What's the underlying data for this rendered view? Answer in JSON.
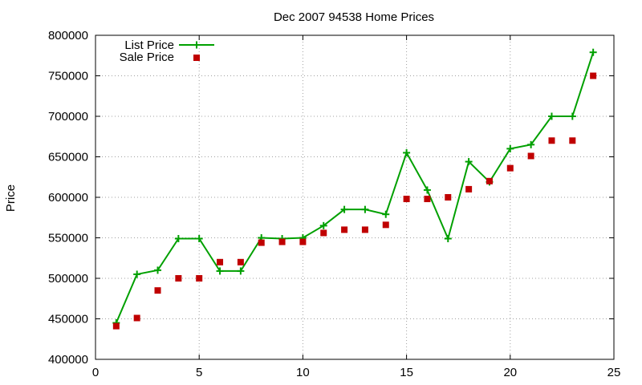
{
  "chart_data": {
    "type": "line",
    "title": "Dec 2007 94538 Home Prices",
    "xlabel": "",
    "ylabel": "Price",
    "xlim": [
      0,
      25
    ],
    "ylim": [
      400000,
      800000
    ],
    "xticks": [
      "0",
      "5",
      "10",
      "15",
      "20",
      "25"
    ],
    "yticks": [
      "400000",
      "450000",
      "500000",
      "550000",
      "600000",
      "650000",
      "700000",
      "750000",
      "800000"
    ],
    "grid": true,
    "legend_position": "top-left",
    "series": [
      {
        "name": "List Price",
        "style": "line with plus markers",
        "color": "#00a000",
        "x": [
          1,
          2,
          3,
          4,
          5,
          6,
          7,
          8,
          9,
          10,
          11,
          12,
          13,
          14,
          15,
          16,
          17,
          18,
          19,
          20,
          21,
          22,
          23,
          24
        ],
        "y": [
          445000,
          505000,
          510000,
          549000,
          549000,
          509000,
          509000,
          550000,
          549000,
          550000,
          565000,
          585000,
          585000,
          579000,
          655000,
          609000,
          549000,
          644000,
          619000,
          660000,
          665000,
          700000,
          700000,
          779000
        ]
      },
      {
        "name": "Sale Price",
        "style": "square markers",
        "color": "#c00000",
        "x": [
          1,
          2,
          3,
          4,
          5,
          6,
          7,
          8,
          9,
          10,
          11,
          12,
          13,
          14,
          15,
          16,
          17,
          18,
          19,
          20,
          21,
          22,
          23,
          24
        ],
        "y": [
          441000,
          451000,
          485000,
          500000,
          500000,
          520000,
          520000,
          544000,
          545000,
          545000,
          556000,
          560000,
          560000,
          566000,
          598000,
          598000,
          600000,
          610000,
          620000,
          636000,
          651000,
          670000,
          670000,
          750000
        ]
      }
    ]
  }
}
